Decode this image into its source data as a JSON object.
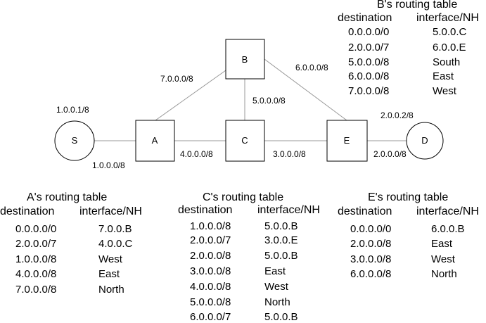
{
  "nodes": {
    "S": "S",
    "A": "A",
    "B": "B",
    "C": "C",
    "E": "E",
    "D": "D"
  },
  "links": {
    "S_A": "1.0.0.0/8",
    "A_B": "7.0.0.0/8",
    "B_C": "5.0.0.0/8",
    "B_E": "6.0.0.0/8",
    "A_C": "4.0.0.0/8",
    "C_E": "3.0.0.0/8",
    "E_D": "2.0.0.0/8"
  },
  "host_addresses": {
    "S": "1.0.0.1/8",
    "D": "2.0.0.2/8"
  },
  "tables": {
    "A": {
      "title": "A's routing table",
      "col_dest": "destination",
      "col_if": "interface/NH",
      "rows": [
        {
          "dest": "0.0.0.0/0",
          "iface": "7.0.0.B"
        },
        {
          "dest": "2.0.0.0/7",
          "iface": "4.0.0.C"
        },
        {
          "dest": "1.0.0.0/8",
          "iface": "West"
        },
        {
          "dest": "4.0.0.0/8",
          "iface": "East"
        },
        {
          "dest": "7.0.0.0/8",
          "iface": "North"
        }
      ]
    },
    "B": {
      "title": "B's routing table",
      "col_dest": "destination",
      "col_if": "interface/NH",
      "rows": [
        {
          "dest": "0.0.0.0/0",
          "iface": "5.0.0.C"
        },
        {
          "dest": "2.0.0.0/7",
          "iface": "6.0.0.E"
        },
        {
          "dest": "5.0.0.0/8",
          "iface": "South"
        },
        {
          "dest": "6.0.0.0/8",
          "iface": "East"
        },
        {
          "dest": "7.0.0.0/8",
          "iface": "West"
        }
      ]
    },
    "C": {
      "title": "C's routing table",
      "col_dest": "destination",
      "col_if": "interface/NH",
      "rows": [
        {
          "dest": "1.0.0.0/8",
          "iface": "5.0.0.B"
        },
        {
          "dest": "2.0.0.0/7",
          "iface": "3.0.0.E"
        },
        {
          "dest": "2.0.0.0/8",
          "iface": "5.0.0.B"
        },
        {
          "dest": "3.0.0.0/8",
          "iface": "East"
        },
        {
          "dest": "4.0.0.0/8",
          "iface": "West"
        },
        {
          "dest": "5.0.0.0/8",
          "iface": "North"
        },
        {
          "dest": "6.0.0.0/7",
          "iface": "5.0.0.B"
        }
      ]
    },
    "E": {
      "title": "E's routing table",
      "col_dest": "destination",
      "col_if": "interface/NH",
      "rows": [
        {
          "dest": "0.0.0.0/0",
          "iface": "6.0.0.B"
        },
        {
          "dest": "2.0.0.0/8",
          "iface": "East"
        },
        {
          "dest": "3.0.0.0/8",
          "iface": "West"
        },
        {
          "dest": "6.0.0.0/8",
          "iface": "North"
        }
      ]
    }
  }
}
